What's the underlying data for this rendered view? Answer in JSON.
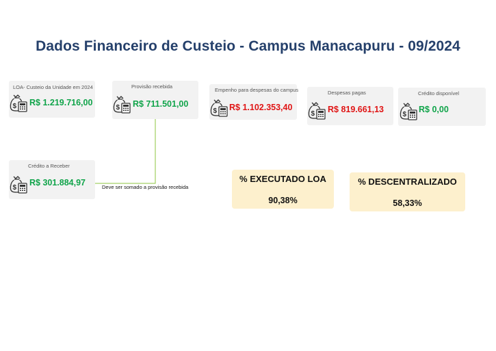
{
  "page": {
    "title": "Dados Financeiro de Custeio - Campus Manacapuru - 09/2024"
  },
  "cards": [
    {
      "id": "loa",
      "label": "LOA- Custeio da Unidade em 2024",
      "value": "R$ 1.219.716,00",
      "color": "#10a44a",
      "icon": "money-calculator-icon"
    },
    {
      "id": "provisao",
      "label": "Provisão recebida",
      "value": "R$ 711.501,00",
      "color": "#10a44a",
      "icon": "money-calculator-icon"
    },
    {
      "id": "empenho",
      "label": "Empenho para despesas do campus",
      "value": "R$ 1.102.353,40",
      "color": "#e01515",
      "icon": "money-calculator-icon"
    },
    {
      "id": "despesas",
      "label": "Despesas pagas",
      "value": "R$ 819.661,13",
      "color": "#e01515",
      "icon": "money-calculator-icon"
    },
    {
      "id": "credito-disp",
      "label": "Crédito disponível",
      "value": "R$ 0,00",
      "color": "#10a44a",
      "icon": "money-calculator-icon"
    },
    {
      "id": "credito-receber",
      "label": "Crédito a Receber",
      "value": "R$ 301.884,97",
      "color": "#10a44a",
      "icon": "money-calculator-icon"
    }
  ],
  "note": "Deve ser somado a provisão recebida",
  "percentages": [
    {
      "id": "executado",
      "title": "% EXECUTADO LOA",
      "value": "90,38%"
    },
    {
      "id": "descentralizado",
      "title": "% DESCENTRALIZADO",
      "value": "58,33%"
    }
  ],
  "colors": {
    "title": "#25406b",
    "positive": "#10a44a",
    "negative": "#e01515",
    "card_bg": "#f2f2f2",
    "pct_bg": "#fdf0cd",
    "connector": "#8dc63f"
  }
}
